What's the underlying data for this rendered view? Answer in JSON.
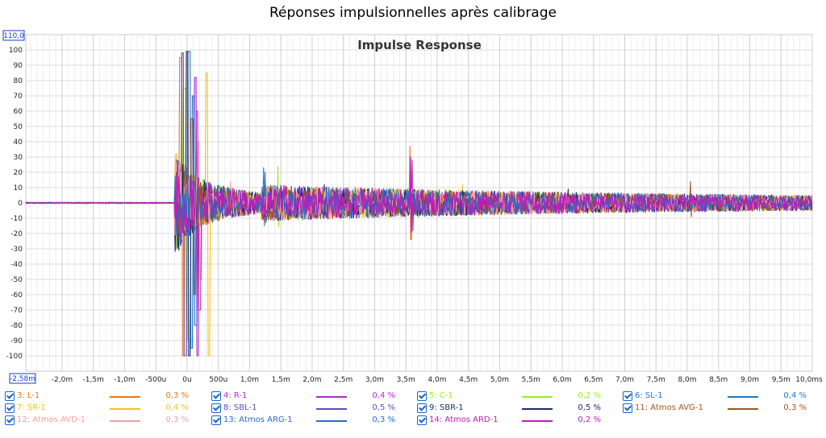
{
  "window": {
    "title": "Réponses impulsionnelles après calibrage"
  },
  "chart_data": {
    "type": "line",
    "title": "Impulse Response",
    "xlabel": "",
    "ylabel": "",
    "xlim": [
      -2.58,
      10.0
    ],
    "ylim": [
      -110,
      110
    ],
    "y_top_label": "110,0",
    "x_left_label": "-2,58m",
    "grid": true,
    "y_ticks": [
      "100",
      "90",
      "80",
      "70",
      "60",
      "50",
      "40",
      "30",
      "20",
      "10",
      "0",
      "-10",
      "-20",
      "-30",
      "-40",
      "-50",
      "-60",
      "-70",
      "-80",
      "-90",
      "-100"
    ],
    "x_ticks": [
      {
        "v": -2.0,
        "label": "-2,0m"
      },
      {
        "v": -1.5,
        "label": "-1,5m"
      },
      {
        "v": -1.0,
        "label": "-1,0m"
      },
      {
        "v": -0.5,
        "label": "-500u"
      },
      {
        "v": 0.0,
        "label": "0u"
      },
      {
        "v": 0.5,
        "label": "500u"
      },
      {
        "v": 1.0,
        "label": "1,0m"
      },
      {
        "v": 1.5,
        "label": "1,5m"
      },
      {
        "v": 2.0,
        "label": "2,0m"
      },
      {
        "v": 2.5,
        "label": "2,5m"
      },
      {
        "v": 3.0,
        "label": "3,0m"
      },
      {
        "v": 3.5,
        "label": "3,5m"
      },
      {
        "v": 4.0,
        "label": "4,0m"
      },
      {
        "v": 4.5,
        "label": "4,5m"
      },
      {
        "v": 5.0,
        "label": "5,0m"
      },
      {
        "v": 5.5,
        "label": "5,5m"
      },
      {
        "v": 6.0,
        "label": "6,0m"
      },
      {
        "v": 6.5,
        "label": "6,5m"
      },
      {
        "v": 7.0,
        "label": "7,0m"
      },
      {
        "v": 7.5,
        "label": "7,5m"
      },
      {
        "v": 8.0,
        "label": "8,0m"
      },
      {
        "v": 8.5,
        "label": "8,5m"
      },
      {
        "v": 9.0,
        "label": "9,0m"
      },
      {
        "v": 9.5,
        "label": "9,5m"
      },
      {
        "v": 10.0,
        "label": "10,0ms"
      }
    ],
    "series": [
      {
        "name": "3: L-1",
        "color": "#e8761a",
        "percent": "0,3 %",
        "peak_x": -0.08,
        "peak_min": -100,
        "peak_max": 95,
        "late_spike_x": 3.57,
        "late_spike": 37
      },
      {
        "name": "4: R-1",
        "color": "#b02ac8",
        "percent": "0,4 %",
        "peak_x": 0.15,
        "peak_min": -100,
        "peak_max": 82,
        "late_spike_x": 3.6,
        "late_spike": 28
      },
      {
        "name": "5: C-1",
        "color": "#98ee1c",
        "percent": "0,2 %",
        "peak_x": -0.02,
        "peak_min": -90,
        "peak_max": 75,
        "late_spike_x": 1.45,
        "late_spike": 24
      },
      {
        "name": "6: SL-1",
        "color": "#1a78d0",
        "percent": "0,4 %",
        "peak_x": 0.05,
        "peak_min": -95,
        "peak_max": 99,
        "late_spike_x": 1.22,
        "late_spike": 23
      },
      {
        "name": "7: SR-1",
        "color": "#f5c21a",
        "percent": "0,4 %",
        "peak_x": 0.33,
        "peak_min": -100,
        "peak_max": 85,
        "late_spike_x": 4.4,
        "late_spike": 12
      },
      {
        "name": "8: SBL-1",
        "color": "#5a4ec0",
        "percent": "0,5 %",
        "peak_x": -0.05,
        "peak_min": -100,
        "peak_max": 98,
        "late_spike_x": 2.2,
        "late_spike": 12
      },
      {
        "name": "9: SBR-1",
        "color": "#1a2e6c",
        "percent": "0,5 %",
        "peak_x": 0.02,
        "peak_min": -100,
        "peak_max": 99,
        "late_spike_x": 6.1,
        "late_spike": 9
      },
      {
        "name": "11: Atmos AVG-1",
        "color": "#a4561a",
        "percent": "0,3 %",
        "peak_x": 0.1,
        "peak_min": -60,
        "peak_max": 55,
        "late_spike_x": 8.05,
        "late_spike": 14
      },
      {
        "name": "12: Atmos AVD-1",
        "color": "#f4a0a0",
        "percent": "0,3 %",
        "peak_x": 0.2,
        "peak_min": -50,
        "peak_max": 40,
        "late_spike_x": 0.7,
        "late_spike": 14
      },
      {
        "name": "13: Atmos ARG-1",
        "color": "#2a6ac8",
        "percent": "0,3 %",
        "peak_x": 0.12,
        "peak_min": -80,
        "peak_max": 70,
        "late_spike_x": 1.25,
        "late_spike": 20
      },
      {
        "name": "14: Atmos ARD-1",
        "color": "#c21ab8",
        "percent": "0,2 %",
        "peak_x": 0.18,
        "peak_min": -70,
        "peak_max": 60,
        "late_spike_x": 3.58,
        "late_spike": 30
      }
    ]
  }
}
